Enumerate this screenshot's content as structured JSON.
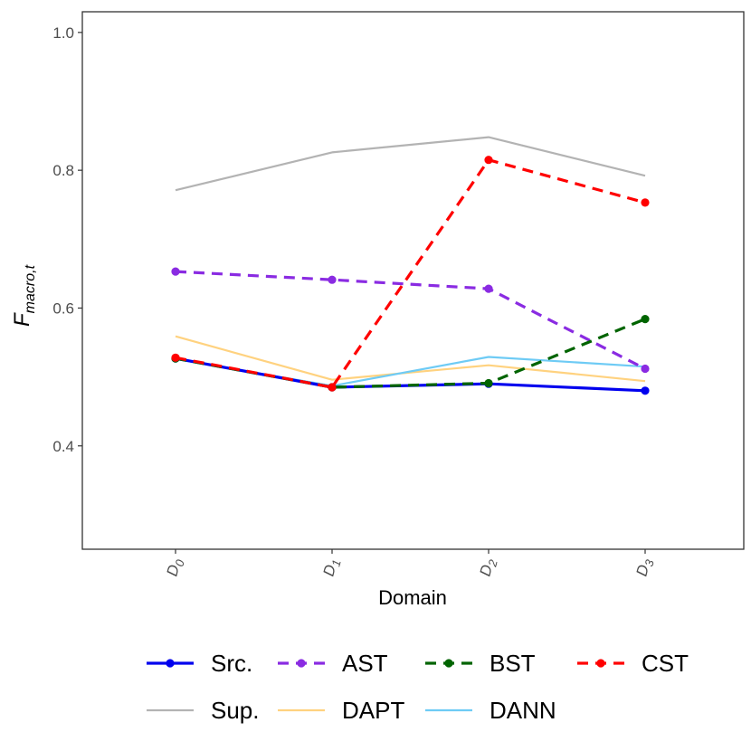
{
  "chart_data": {
    "type": "line",
    "title": "",
    "xlabel": "Domain",
    "ylabel": {
      "main": "F",
      "sub": "macro,t"
    },
    "categories": [
      {
        "main": "D",
        "sub": "0"
      },
      {
        "main": "D",
        "sub": "1"
      },
      {
        "main": "D",
        "sub": "2"
      },
      {
        "main": "D",
        "sub": "3"
      }
    ],
    "ylim": [
      0.25,
      1.03
    ],
    "yticks": [
      {
        "value": 0.4,
        "label": "0.4"
      },
      {
        "value": 0.6,
        "label": "0.6"
      },
      {
        "value": 0.8,
        "label": "0.8"
      },
      {
        "value": 1.0,
        "label": "1.0"
      }
    ],
    "grid": false,
    "legend_position": "bottom",
    "series": [
      {
        "name": "Sup.",
        "color": "#b3b3b3",
        "dashed": false,
        "markers": false,
        "values": [
          0.771,
          0.826,
          0.848,
          0.792
        ]
      },
      {
        "name": "DAPT",
        "color": "#ffd27f",
        "dashed": false,
        "markers": false,
        "values": [
          0.559,
          0.496,
          0.517,
          0.494
        ]
      },
      {
        "name": "DANN",
        "color": "#6ecbf5",
        "dashed": false,
        "markers": false,
        "values": [
          0.526,
          0.487,
          0.529,
          0.515
        ]
      },
      {
        "name": "Src.",
        "color": "#0000ee",
        "dashed": false,
        "markers": true,
        "values": [
          0.527,
          0.485,
          0.49,
          0.48
        ]
      },
      {
        "name": "AST",
        "color": "#8a2be2",
        "dashed": true,
        "markers": true,
        "values": [
          0.653,
          0.641,
          0.628,
          0.512
        ]
      },
      {
        "name": "BST",
        "color": "#006400",
        "dashed": true,
        "markers": true,
        "values": [
          0.527,
          0.485,
          0.491,
          0.584
        ]
      },
      {
        "name": "CST",
        "color": "#ff0000",
        "dashed": true,
        "markers": true,
        "values": [
          0.528,
          0.485,
          0.815,
          0.753
        ]
      }
    ],
    "legend_order": [
      "Src.",
      "AST",
      "BST",
      "CST",
      "Sup.",
      "DAPT",
      "DANN"
    ]
  }
}
